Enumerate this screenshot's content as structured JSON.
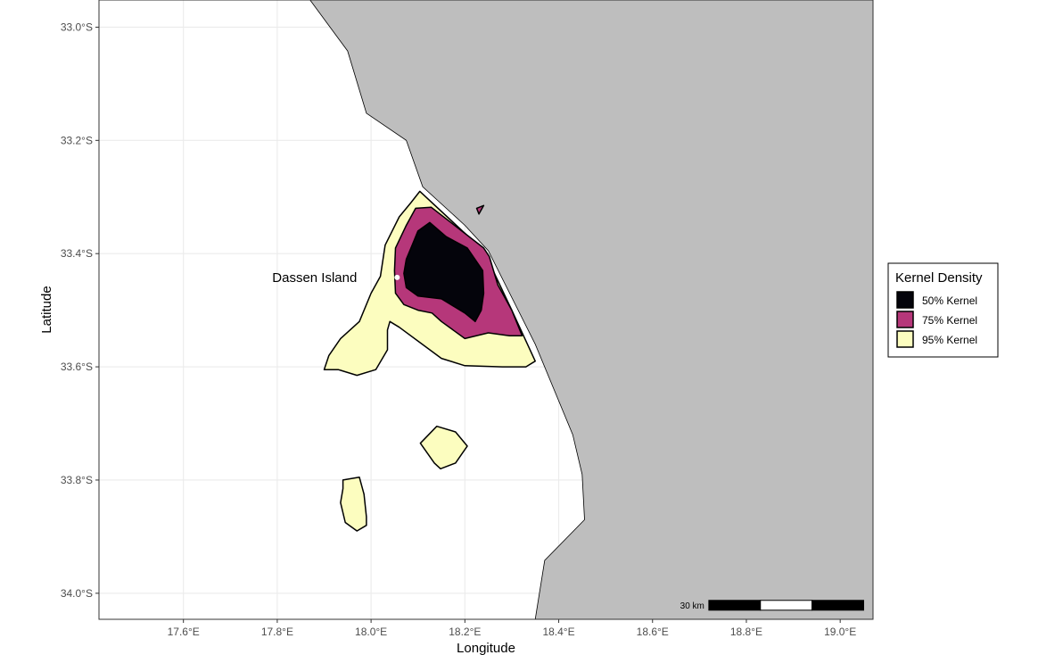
{
  "chart_data": {
    "type": "map",
    "xlabel": "Longitude",
    "ylabel": "Latitude",
    "xlim": [
      17.42,
      19.07
    ],
    "ylim": [
      -34.046,
      -32.952
    ],
    "x_ticks": [
      {
        "value": 17.6,
        "label": "17.6°E"
      },
      {
        "value": 17.8,
        "label": "17.8°E"
      },
      {
        "value": 18.0,
        "label": "18.0°E"
      },
      {
        "value": 18.2,
        "label": "18.2°E"
      },
      {
        "value": 18.4,
        "label": "18.4°E"
      },
      {
        "value": 18.6,
        "label": "18.6°E"
      },
      {
        "value": 18.8,
        "label": "18.8°E"
      },
      {
        "value": 19.0,
        "label": "19.0°E"
      }
    ],
    "y_ticks": [
      {
        "value": -33.0,
        "label": "33.0°S"
      },
      {
        "value": -33.2,
        "label": "33.2°S"
      },
      {
        "value": -33.4,
        "label": "33.4°S"
      },
      {
        "value": -33.6,
        "label": "33.6°S"
      },
      {
        "value": -33.8,
        "label": "33.8°S"
      },
      {
        "value": -34.0,
        "label": "34.0°S"
      }
    ],
    "grid": true,
    "land_color": "#bebebe",
    "land": [
      [
        17.87,
        -32.952
      ],
      [
        17.95,
        -33.042
      ],
      [
        17.99,
        -33.152
      ],
      [
        18.075,
        -33.2
      ],
      [
        18.11,
        -33.282
      ],
      [
        18.2,
        -33.35
      ],
      [
        18.25,
        -33.395
      ],
      [
        18.35,
        -33.56
      ],
      [
        18.43,
        -33.72
      ],
      [
        18.45,
        -33.79
      ],
      [
        18.455,
        -33.87
      ],
      [
        18.37,
        -33.942
      ],
      [
        18.35,
        -34.046
      ],
      [
        19.07,
        -34.046
      ],
      [
        19.07,
        -32.952
      ]
    ],
    "legend": {
      "title": "Kernel Density",
      "position": "right",
      "entries": [
        {
          "label": "50% Kernel",
          "color": "#04040b"
        },
        {
          "label": "75% Kernel",
          "color": "#b6377a"
        },
        {
          "label": "95% Kernel",
          "color": "#fcfdbf"
        }
      ]
    },
    "kernels": [
      {
        "level": "95%",
        "color": "#fcfdbf",
        "polygons": [
          [
            [
              18.104,
              -33.29
            ],
            [
              18.24,
              -33.395
            ],
            [
              18.3,
              -33.5
            ],
            [
              18.35,
              -33.59
            ],
            [
              18.33,
              -33.6
            ],
            [
              18.28,
              -33.6
            ],
            [
              18.2,
              -33.598
            ],
            [
              18.15,
              -33.585
            ],
            [
              18.06,
              -33.53
            ],
            [
              18.04,
              -33.52
            ],
            [
              18.035,
              -33.535
            ],
            [
              18.035,
              -33.57
            ],
            [
              18.01,
              -33.605
            ],
            [
              17.97,
              -33.615
            ],
            [
              17.93,
              -33.605
            ],
            [
              17.9,
              -33.605
            ],
            [
              17.91,
              -33.58
            ],
            [
              17.935,
              -33.55
            ],
            [
              17.975,
              -33.52
            ],
            [
              18.0,
              -33.47
            ],
            [
              18.02,
              -33.44
            ],
            [
              18.03,
              -33.385
            ],
            [
              18.06,
              -33.335
            ],
            [
              18.085,
              -33.31
            ]
          ],
          [
            [
              18.14,
              -33.705
            ],
            [
              18.18,
              -33.715
            ],
            [
              18.205,
              -33.74
            ],
            [
              18.18,
              -33.77
            ],
            [
              18.148,
              -33.78
            ],
            [
              18.135,
              -33.77
            ],
            [
              18.105,
              -33.735
            ]
          ],
          [
            [
              17.94,
              -33.8
            ],
            [
              17.975,
              -33.795
            ],
            [
              17.985,
              -33.825
            ],
            [
              17.99,
              -33.865
            ],
            [
              17.99,
              -33.88
            ],
            [
              17.97,
              -33.89
            ],
            [
              17.945,
              -33.875
            ],
            [
              17.935,
              -33.84
            ],
            [
              17.94,
              -33.815
            ]
          ]
        ]
      },
      {
        "level": "75%",
        "color": "#b6377a",
        "polygons": [
          [
            [
              18.128,
              -33.318
            ],
            [
              18.24,
              -33.39
            ],
            [
              18.252,
              -33.405
            ],
            [
              18.27,
              -33.455
            ],
            [
              18.3,
              -33.5
            ],
            [
              18.322,
              -33.545
            ],
            [
              18.295,
              -33.545
            ],
            [
              18.25,
              -33.54
            ],
            [
              18.2,
              -33.55
            ],
            [
              18.15,
              -33.52
            ],
            [
              18.13,
              -33.505
            ],
            [
              18.1,
              -33.5
            ],
            [
              18.07,
              -33.49
            ],
            [
              18.052,
              -33.47
            ],
            [
              18.05,
              -33.43
            ],
            [
              18.052,
              -33.39
            ],
            [
              18.075,
              -33.35
            ],
            [
              18.095,
              -33.32
            ]
          ],
          [
            [
              18.225,
              -33.32
            ],
            [
              18.24,
              -33.315
            ],
            [
              18.23,
              -33.33
            ]
          ]
        ]
      },
      {
        "level": "50%",
        "color": "#04040b",
        "polygons": [
          [
            [
              18.125,
              -33.345
            ],
            [
              18.16,
              -33.37
            ],
            [
              18.205,
              -33.39
            ],
            [
              18.238,
              -33.43
            ],
            [
              18.24,
              -33.47
            ],
            [
              18.235,
              -33.5
            ],
            [
              18.222,
              -33.52
            ],
            [
              18.2,
              -33.505
            ],
            [
              18.15,
              -33.48
            ],
            [
              18.1,
              -33.475
            ],
            [
              18.075,
              -33.46
            ],
            [
              18.07,
              -33.435
            ],
            [
              18.075,
              -33.41
            ],
            [
              18.09,
              -33.38
            ],
            [
              18.1,
              -33.36
            ]
          ]
        ]
      }
    ],
    "annotations": [
      {
        "text": "Dassen Island",
        "x": 17.97,
        "y": -33.42,
        "marker": "#ffffff"
      }
    ],
    "scalebar": {
      "label": "30 km",
      "segments": 3,
      "lon_start": 18.72,
      "lon_end": 19.05,
      "lat": -34.022
    }
  }
}
